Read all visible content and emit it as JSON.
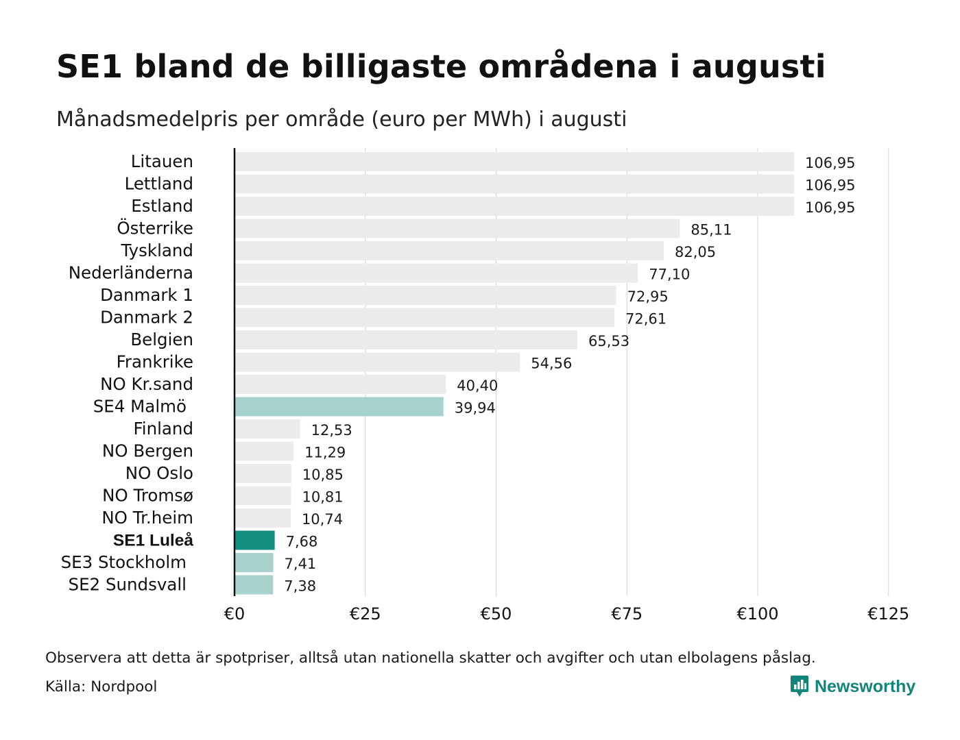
{
  "header": {
    "title": "SE1 bland de billigaste områdena i augusti",
    "subtitle": "Månadsmedelpris per område (euro per MWh) i augusti"
  },
  "footer": {
    "note": "Observera att detta är spotpriser, alltså utan nationella skatter och avgifter och utan elbolagens påslag.",
    "source": "Källa: Nordpool",
    "logo_text": "Newsworthy",
    "logo_icon": "newsworthy-chart-bubble-icon"
  },
  "colors": {
    "default_bar": "#ebebeb",
    "highlight_bar": "#138f82",
    "sweden_bar": "#a6d2cb",
    "gridline": "#cfd3da",
    "axis": "#111111",
    "brand": "#12857a"
  },
  "chart_data": {
    "type": "bar",
    "orientation": "horizontal",
    "title": "SE1 bland de billigaste områdena i augusti",
    "subtitle": "Månadsmedelpris per område (euro per MWh) i augusti",
    "xlim": [
      0,
      125
    ],
    "x_ticks": [
      0,
      25,
      50,
      75,
      100,
      125
    ],
    "x_tick_labels": [
      "€0",
      "€25",
      "€50",
      "€75",
      "€100",
      "€125"
    ],
    "grid": "vertical",
    "bars": [
      {
        "code": "",
        "name": "Litauen",
        "value": 106.95,
        "label": "106,95",
        "group": "default"
      },
      {
        "code": "",
        "name": "Lettland",
        "value": 106.95,
        "label": "106,95",
        "group": "default"
      },
      {
        "code": "",
        "name": "Estland",
        "value": 106.95,
        "label": "106,95",
        "group": "default"
      },
      {
        "code": "",
        "name": "Österrike",
        "value": 85.11,
        "label": "85,11",
        "group": "default"
      },
      {
        "code": "",
        "name": "Tyskland",
        "value": 82.05,
        "label": "82,05",
        "group": "default"
      },
      {
        "code": "",
        "name": "Nederländerna",
        "value": 77.1,
        "label": "77,10",
        "group": "default"
      },
      {
        "code": "",
        "name": "Danmark  1",
        "value": 72.95,
        "label": "72,95",
        "group": "default"
      },
      {
        "code": "",
        "name": "Danmark  2",
        "value": 72.61,
        "label": "72,61",
        "group": "default"
      },
      {
        "code": "",
        "name": "Belgien",
        "value": 65.53,
        "label": "65,53",
        "group": "default"
      },
      {
        "code": "",
        "name": "Frankrike",
        "value": 54.56,
        "label": "54,56",
        "group": "default"
      },
      {
        "code": "",
        "name": "NO Kr.sand",
        "value": 40.4,
        "label": "40,40",
        "group": "default"
      },
      {
        "code": "SE4",
        "name": "Malmö",
        "value": 39.94,
        "label": "39,94",
        "group": "sweden"
      },
      {
        "code": "",
        "name": "Finland",
        "value": 12.53,
        "label": "12,53",
        "group": "default"
      },
      {
        "code": "",
        "name": "NO Bergen",
        "value": 11.29,
        "label": "11,29",
        "group": "default"
      },
      {
        "code": "",
        "name": "NO Oslo",
        "value": 10.85,
        "label": "10,85",
        "group": "default"
      },
      {
        "code": "",
        "name": "NO Tromsø",
        "value": 10.81,
        "label": "10,81",
        "group": "default"
      },
      {
        "code": "",
        "name": "NO Tr.heim",
        "value": 10.74,
        "label": "10,74",
        "group": "default"
      },
      {
        "code": "",
        "name": "SE1 Luleå",
        "value": 7.68,
        "label": "7,68",
        "group": "highlight"
      },
      {
        "code": "SE3",
        "name": "Stockholm",
        "value": 7.41,
        "label": "7,41",
        "group": "sweden"
      },
      {
        "code": "SE2",
        "name": "Sundsvall",
        "value": 7.38,
        "label": "7,38",
        "group": "sweden"
      }
    ]
  }
}
